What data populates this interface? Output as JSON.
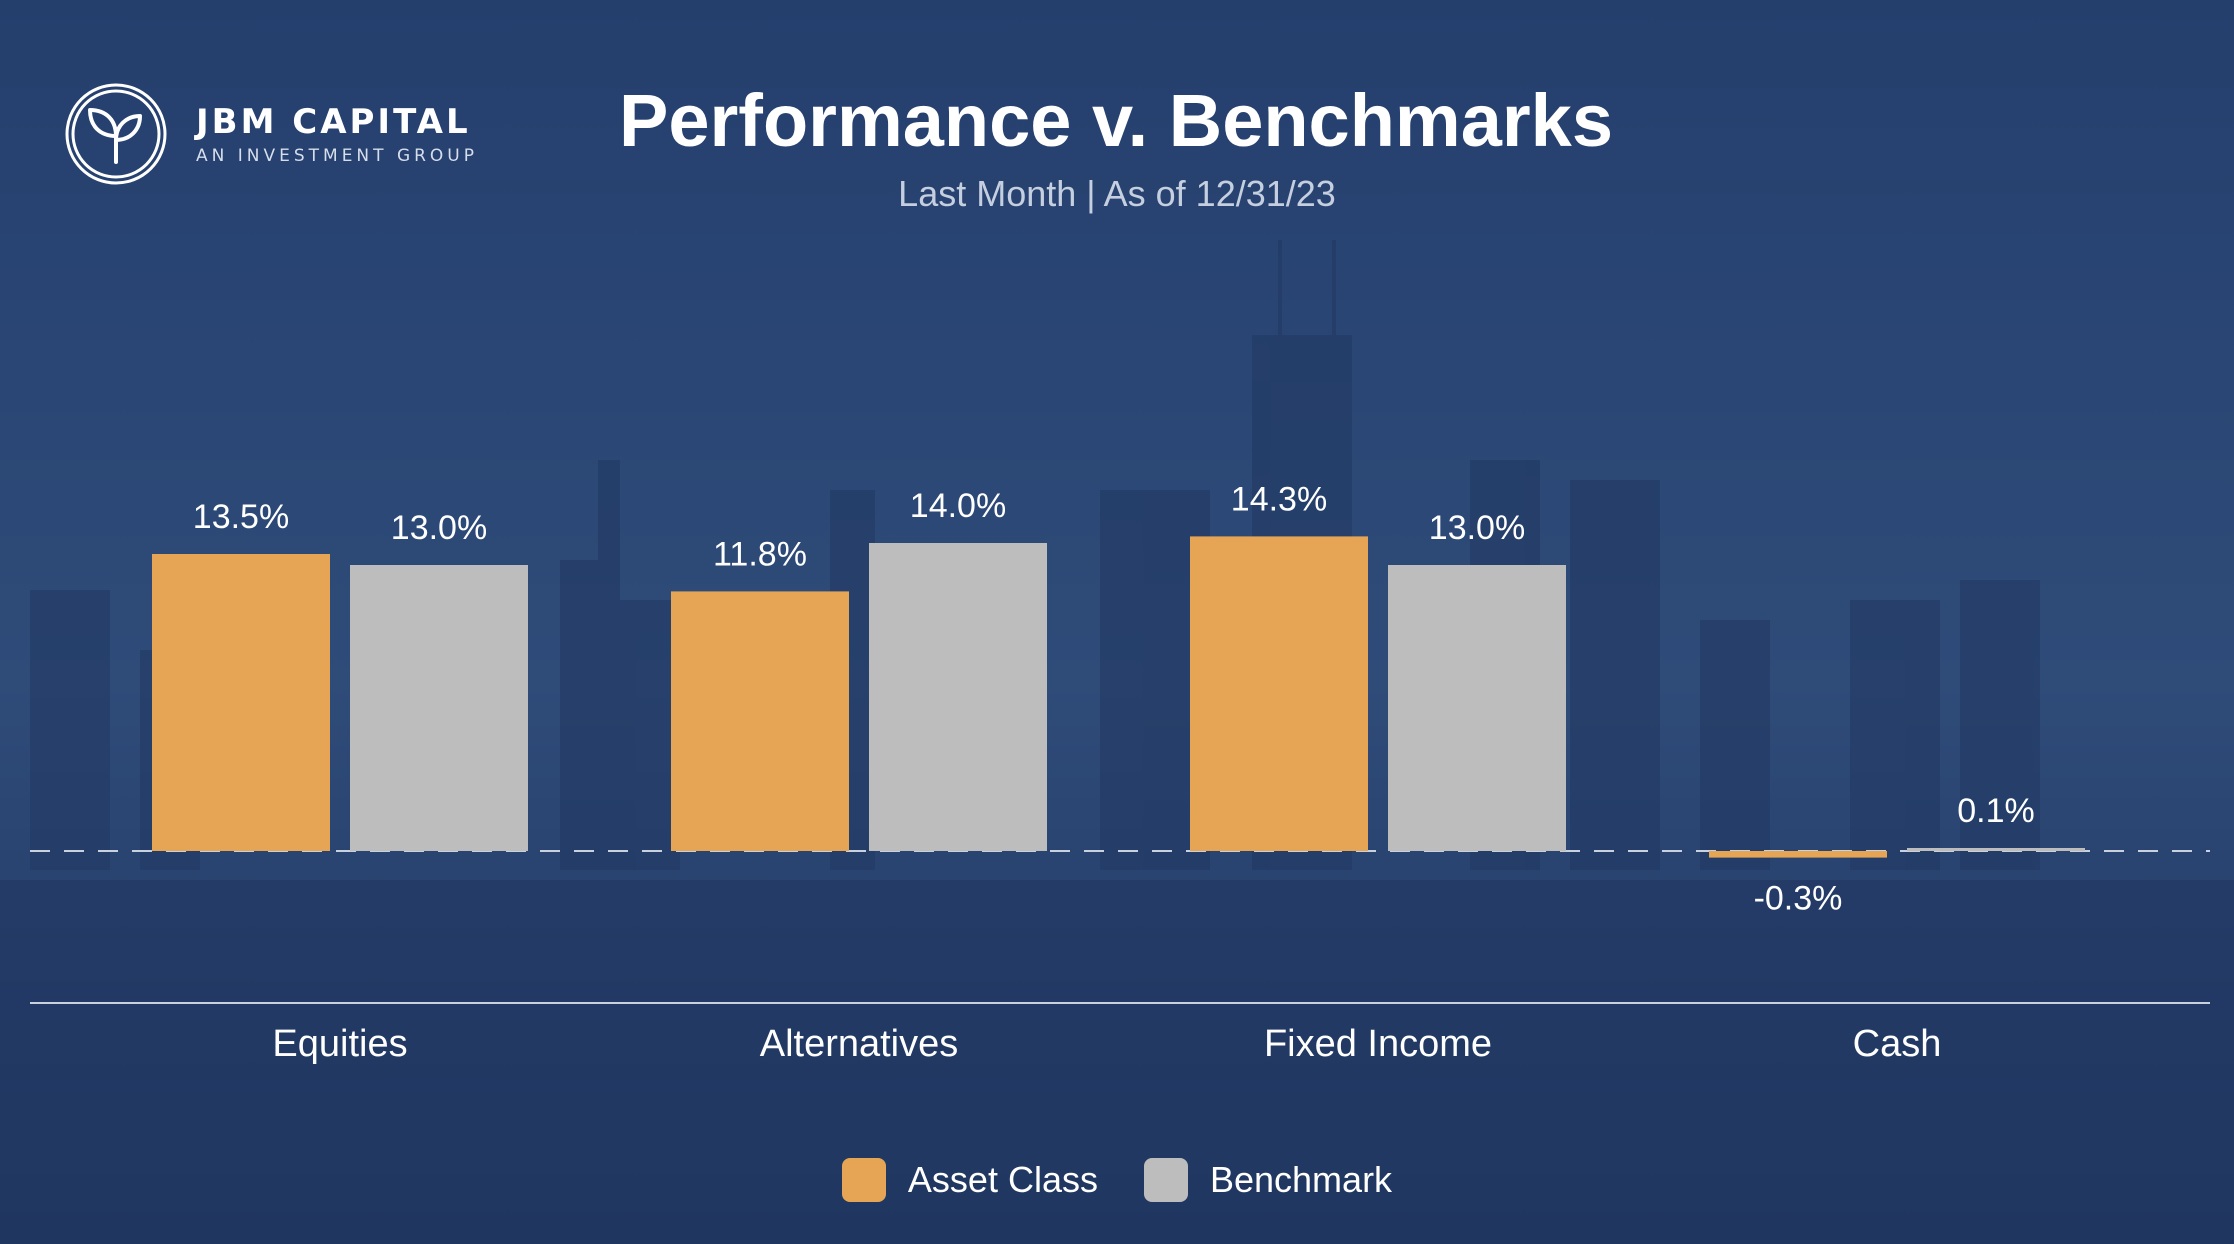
{
  "brand": {
    "name": "JBM CAPITAL",
    "tagline": "AN INVESTMENT GROUP",
    "icon": "sprout-icon"
  },
  "colors": {
    "asset_class": "#e5a555",
    "benchmark": "#bdbdbd",
    "background": "#2a4674"
  },
  "chart_data": {
    "type": "bar",
    "title": "Performance v. Benchmarks",
    "subtitle": "Last Month | As of 12/31/23",
    "categories": [
      "Equities",
      "Alternatives",
      "Fixed Income",
      "Cash"
    ],
    "series": [
      {
        "name": "Asset Class",
        "values": [
          13.5,
          11.8,
          14.3,
          -0.3
        ],
        "labels": [
          "13.5%",
          "11.8%",
          "14.3%",
          "-0.3%"
        ]
      },
      {
        "name": "Benchmark",
        "values": [
          13.0,
          14.0,
          13.0,
          0.1
        ],
        "labels": [
          "13.0%",
          "14.0%",
          "13.0%",
          "0.1%"
        ]
      }
    ],
    "legend_position": "bottom-center",
    "grid": false
  }
}
